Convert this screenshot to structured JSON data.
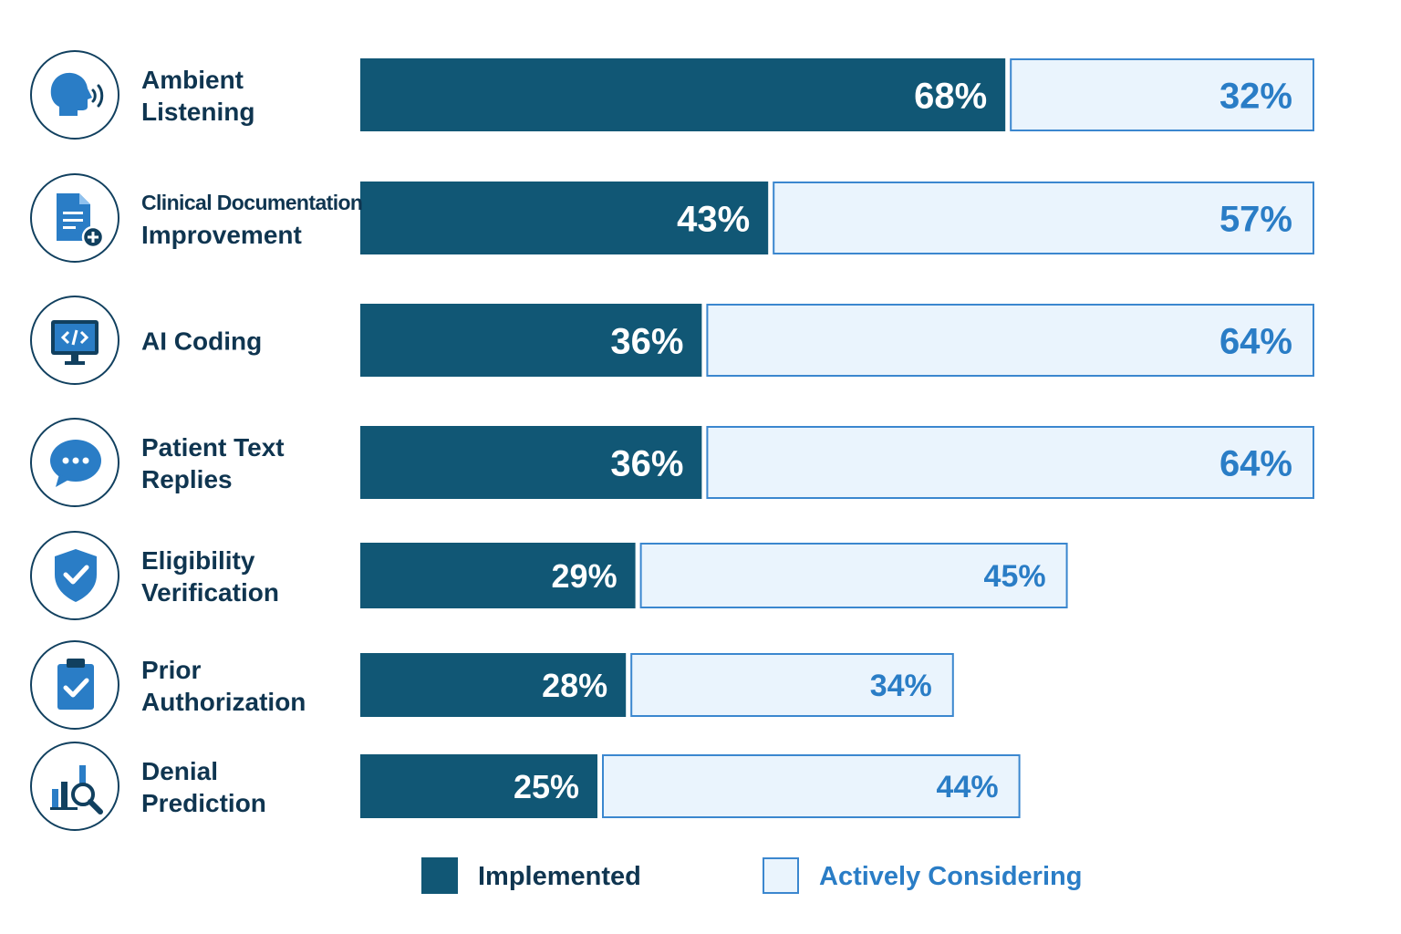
{
  "colors": {
    "implemented": "#115775",
    "considering_fill": "#eaf4fd",
    "considering_border": "#3b87cf",
    "considering_text": "#2a7dc6",
    "label_text": "#0f3550",
    "icon_blue": "#2a7dc6"
  },
  "chart_data": {
    "type": "bar",
    "orientation": "horizontal",
    "stacked": true,
    "categories": [
      "Ambient Listening",
      "Clinical Documentation Improvement",
      "AI Coding",
      "Patient Text Replies",
      "Eligibility Verification",
      "Prior Authorization",
      "Denial Prediction"
    ],
    "icons": [
      "speaking-head-icon",
      "document-plus-icon",
      "code-monitor-icon",
      "chat-bubble-icon",
      "shield-check-icon",
      "clipboard-check-icon",
      "chart-magnifier-icon"
    ],
    "series": [
      {
        "name": "Implemented",
        "values": [
          68,
          43,
          36,
          36,
          29,
          28,
          25
        ],
        "labels": [
          "68%",
          "43%",
          "36%",
          "36%",
          "29%",
          "28%",
          "25%"
        ]
      },
      {
        "name": "Actively Considering",
        "values": [
          32,
          57,
          64,
          64,
          45,
          34,
          44
        ],
        "labels": [
          "32%",
          "57%",
          "64%",
          "64%",
          "45%",
          "34%",
          "44%"
        ]
      }
    ],
    "legend_position": "bottom",
    "grid": false
  },
  "legend": [
    {
      "label": "Implemented"
    },
    {
      "label": "Actively Considering"
    }
  ]
}
